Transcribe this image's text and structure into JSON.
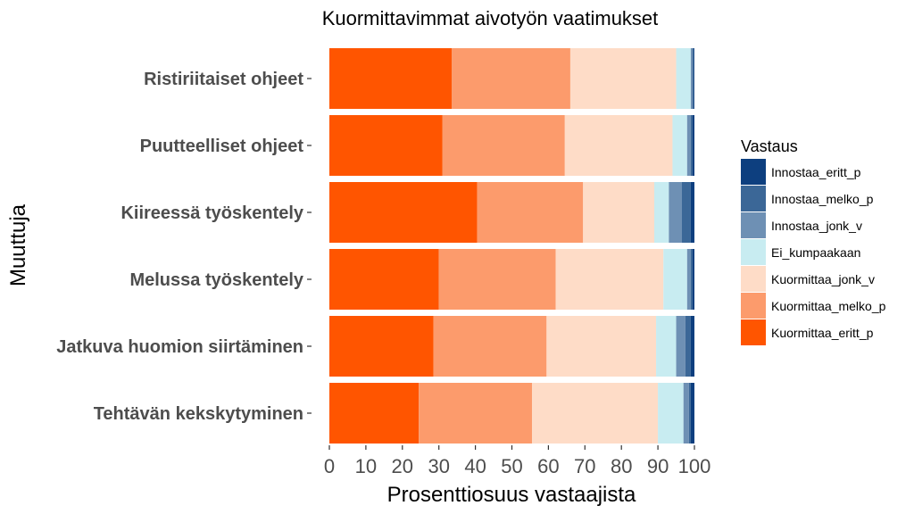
{
  "chart_data": {
    "type": "bar",
    "orientation": "horizontal",
    "stacked": true,
    "title": "Kuormittavimmat aivotyön vaatimukset",
    "xlabel": "Prosenttiosuus vastaajista",
    "ylabel": "Muuttuja",
    "xlim": [
      0,
      100
    ],
    "xticks": [
      "0",
      "10",
      "20",
      "30",
      "40",
      "50",
      "60",
      "70",
      "80",
      "90",
      "100"
    ],
    "grid": false,
    "legend_placement": "right",
    "legend_title": "Vastaus",
    "categories": [
      "Ristiriitaiset ohjeet",
      "Puutteelliset ohjeet",
      "Kiireessä työskentely",
      "Melussa työskentely",
      "Jatkuva huomion siirtäminen",
      "Tehtävän kekskytyminen"
    ],
    "series": [
      {
        "name": "Kuormittaa_eritt_p",
        "color": "#ff5500",
        "values": [
          33.5,
          31.0,
          40.5,
          30.0,
          28.5,
          24.5
        ]
      },
      {
        "name": "Kuormittaa_melko_p",
        "color": "#fc9b6c",
        "values": [
          32.5,
          33.5,
          29.0,
          32.0,
          31.0,
          31.0
        ]
      },
      {
        "name": "Kuormittaa_jonk_v",
        "color": "#fedcc7",
        "values": [
          29.0,
          29.5,
          19.5,
          29.5,
          30.0,
          34.5
        ]
      },
      {
        "name": "Ei_kumpaakaan",
        "color": "#c8ecf1",
        "values": [
          4.0,
          4.0,
          4.0,
          6.5,
          5.5,
          7.0
        ]
      },
      {
        "name": "Innostaa_jonk_v",
        "color": "#6e90b4",
        "values": [
          0.5,
          1.0,
          3.5,
          1.0,
          2.5,
          1.5
        ]
      },
      {
        "name": "Innostaa_melko_p",
        "color": "#3b6797",
        "values": [
          0.3,
          0.5,
          2.5,
          0.5,
          1.5,
          0.5
        ]
      },
      {
        "name": "Innostaa_eritt_p",
        "color": "#0d3f7f",
        "values": [
          0.2,
          0.5,
          1.0,
          0.5,
          1.0,
          1.0
        ]
      }
    ],
    "legend_order": [
      "Innostaa_eritt_p",
      "Innostaa_melko_p",
      "Innostaa_jonk_v",
      "Ei_kumpaakaan",
      "Kuormittaa_jonk_v",
      "Kuormittaa_melko_p",
      "Kuormittaa_eritt_p"
    ]
  }
}
